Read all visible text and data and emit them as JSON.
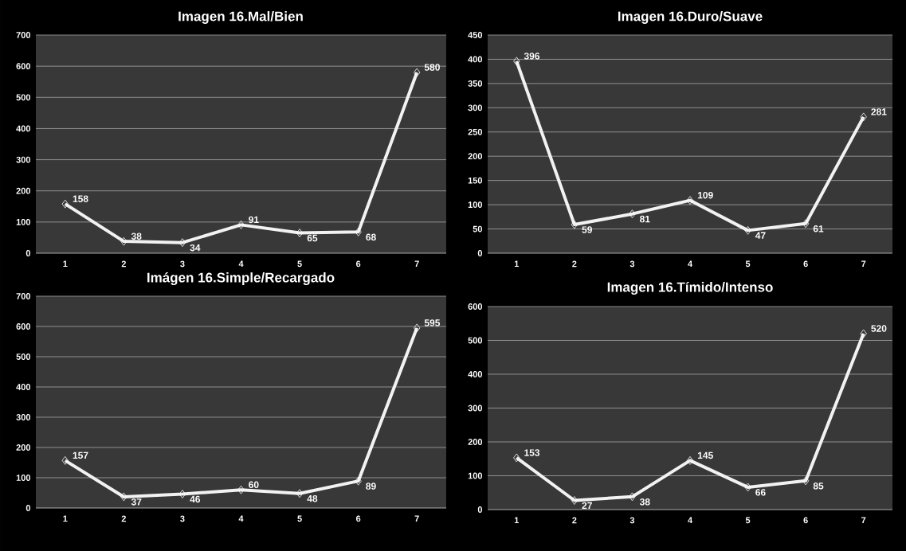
{
  "chart_data": [
    {
      "type": "line",
      "title": "Imagen 16.Mal/Bien",
      "categories": [
        "1",
        "2",
        "3",
        "4",
        "5",
        "6",
        "7"
      ],
      "values": [
        158,
        38,
        34,
        91,
        65,
        68,
        580
      ],
      "color": "#f2f2f2",
      "ylim": [
        0,
        700
      ],
      "yticks": [
        0,
        100,
        200,
        300,
        400,
        500,
        600,
        700
      ],
      "grid": "y",
      "marker": "diamond",
      "data_labels": true
    },
    {
      "type": "line",
      "title": "Imagen 16.Duro/Suave",
      "categories": [
        "1",
        "2",
        "3",
        "4",
        "5",
        "6",
        "7"
      ],
      "values": [
        396,
        59,
        81,
        109,
        47,
        61,
        281
      ],
      "color": "#f2f2f2",
      "ylim": [
        0,
        450
      ],
      "yticks": [
        0,
        50,
        100,
        150,
        200,
        250,
        300,
        350,
        400,
        450
      ],
      "grid": "y",
      "marker": "diamond",
      "data_labels": true
    },
    {
      "type": "line",
      "title": "Imágen 16.Simple/Recargado",
      "categories": [
        "1",
        "2",
        "3",
        "4",
        "5",
        "6",
        "7"
      ],
      "values": [
        157,
        37,
        46,
        60,
        48,
        89,
        595
      ],
      "color": "#f2f2f2",
      "ylim": [
        0,
        700
      ],
      "yticks": [
        0,
        100,
        200,
        300,
        400,
        500,
        600,
        700
      ],
      "grid": "y",
      "marker": "diamond",
      "data_labels": true
    },
    {
      "type": "line",
      "title": "Imagen 16.Tímido/Intenso",
      "categories": [
        "1",
        "2",
        "3",
        "4",
        "5",
        "6",
        "7"
      ],
      "values": [
        153,
        27,
        38,
        145,
        66,
        85,
        520
      ],
      "color": "#f2f2f2",
      "ylim": [
        0,
        600
      ],
      "yticks": [
        0,
        100,
        200,
        300,
        400,
        500,
        600
      ],
      "grid": "y",
      "marker": "diamond",
      "data_labels": true
    }
  ]
}
